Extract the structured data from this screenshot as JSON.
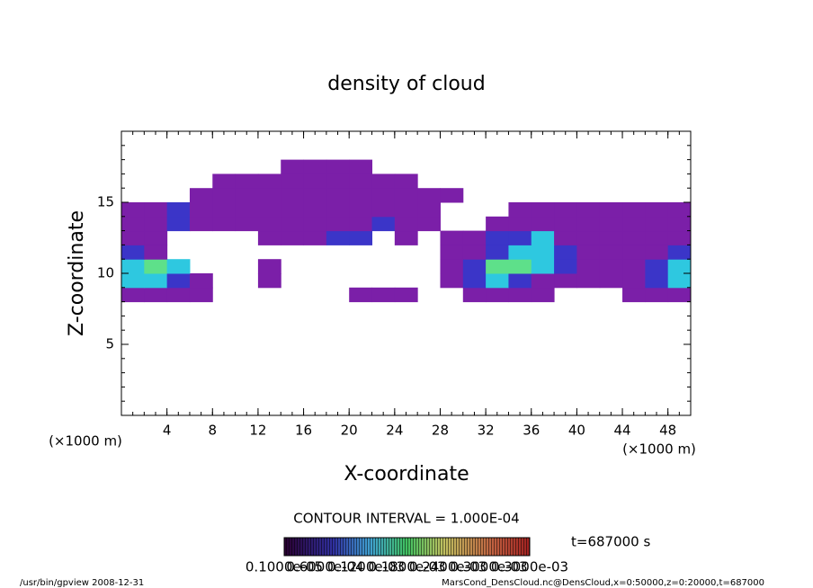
{
  "chart_data": {
    "type": "heatmap",
    "title": "density of cloud",
    "x_label": "X-coordinate",
    "y_label": "Z-coordinate",
    "x_unit": "(×1000 m)",
    "x_unit_right": "(×1000 m)",
    "contour_interval": "CONTOUR INTERVAL = 1.000E-04",
    "time_label": "t=687000 s",
    "footer_left": "/usr/bin/gpview   2008-12-31",
    "footer_right": "MarsCond_DensCloud.nc@DensCloud,x=0:50000,z=0:20000,t=687000",
    "colorbar_labels": [
      "0.1000e-05",
      "0.6000e-04",
      "0.1200e-03",
      "0.1800e-03",
      "0.2400e-03",
      "0.3000e-03",
      "0.3000e-03"
    ],
    "xlim": [
      0,
      50
    ],
    "ylim": [
      0,
      20
    ],
    "xticks": [
      4,
      8,
      12,
      16,
      20,
      24,
      28,
      32,
      36,
      40,
      44,
      48
    ],
    "yticks": [
      5,
      10,
      15
    ],
    "x": [
      1,
      3,
      5,
      7,
      9,
      11,
      13,
      15,
      17,
      19,
      21,
      23,
      25,
      27,
      29,
      31,
      33,
      35,
      37,
      39,
      41,
      43,
      45,
      47,
      49
    ],
    "y": [
      8.5,
      9.5,
      10.5,
      11.5,
      12.5,
      13.5,
      14.5,
      15.5,
      16.5,
      17.5
    ],
    "levels": [
      1e-06,
      2e-05,
      6e-05,
      0.00012
    ],
    "colors": [
      "#7b1fa8",
      "#3b35c8",
      "#2ec8e0",
      "#5ee08a"
    ],
    "values": [
      [
        1e-05,
        1e-05,
        1e-05,
        1e-05,
        0,
        0,
        0,
        0,
        0,
        0,
        1e-05,
        1e-05,
        1e-05,
        0,
        0,
        1e-05,
        1e-05,
        1e-05,
        1e-05,
        0,
        0,
        0,
        1e-05,
        1e-05,
        1e-05
      ],
      [
        8e-05,
        8e-05,
        3e-05,
        1e-05,
        0,
        0,
        1e-05,
        0,
        0,
        0,
        0,
        0,
        0,
        0,
        1e-05,
        3e-05,
        8e-05,
        3e-05,
        1e-05,
        1e-05,
        1e-05,
        1e-05,
        1e-05,
        3e-05,
        8e-05
      ],
      [
        8e-05,
        0.00015,
        8e-05,
        0,
        0,
        0,
        1e-05,
        0,
        0,
        0,
        0,
        0,
        0,
        0,
        1e-05,
        3e-05,
        0.00015,
        0.00015,
        8e-05,
        3e-05,
        1e-05,
        1e-05,
        1e-05,
        3e-05,
        8e-05
      ],
      [
        3e-05,
        1e-05,
        0,
        0,
        0,
        0,
        0,
        0,
        0,
        0,
        0,
        0,
        0,
        0,
        1e-05,
        1e-05,
        3e-05,
        8e-05,
        8e-05,
        3e-05,
        1e-05,
        1e-05,
        1e-05,
        1e-05,
        3e-05
      ],
      [
        1e-05,
        1e-05,
        0,
        0,
        0,
        0,
        1e-05,
        1e-05,
        1e-05,
        3e-05,
        3e-05,
        0,
        1e-05,
        0,
        1e-05,
        1e-05,
        3e-05,
        3e-05,
        8e-05,
        1e-05,
        1e-05,
        1e-05,
        1e-05,
        1e-05,
        1e-05
      ],
      [
        1e-05,
        1e-05,
        3e-05,
        1e-05,
        1e-05,
        1e-05,
        1e-05,
        1e-05,
        1e-05,
        1e-05,
        1e-05,
        3e-05,
        1e-05,
        1e-05,
        0,
        0,
        1e-05,
        1e-05,
        1e-05,
        1e-05,
        1e-05,
        1e-05,
        1e-05,
        1e-05,
        1e-05
      ],
      [
        1e-05,
        1e-05,
        3e-05,
        1e-05,
        1e-05,
        1e-05,
        1e-05,
        1e-05,
        1e-05,
        1e-05,
        1e-05,
        1e-05,
        1e-05,
        1e-05,
        0,
        0,
        0,
        1e-05,
        1e-05,
        1e-05,
        1e-05,
        1e-05,
        1e-05,
        1e-05,
        1e-05
      ],
      [
        0,
        0,
        0,
        1e-05,
        1e-05,
        1e-05,
        1e-05,
        1e-05,
        1e-05,
        1e-05,
        1e-05,
        1e-05,
        1e-05,
        1e-05,
        1e-05,
        0,
        0,
        0,
        0,
        0,
        0,
        0,
        0,
        0,
        0
      ],
      [
        0,
        0,
        0,
        0,
        1e-05,
        1e-05,
        1e-05,
        1e-05,
        1e-05,
        1e-05,
        1e-05,
        1e-05,
        1e-05,
        0,
        0,
        0,
        0,
        0,
        0,
        0,
        0,
        0,
        0,
        0,
        0
      ],
      [
        0,
        0,
        0,
        0,
        0,
        0,
        0,
        1e-05,
        1e-05,
        1e-05,
        1e-05,
        0,
        0,
        0,
        0,
        0,
        0,
        0,
        0,
        0,
        0,
        0,
        0,
        0,
        0
      ]
    ]
  }
}
